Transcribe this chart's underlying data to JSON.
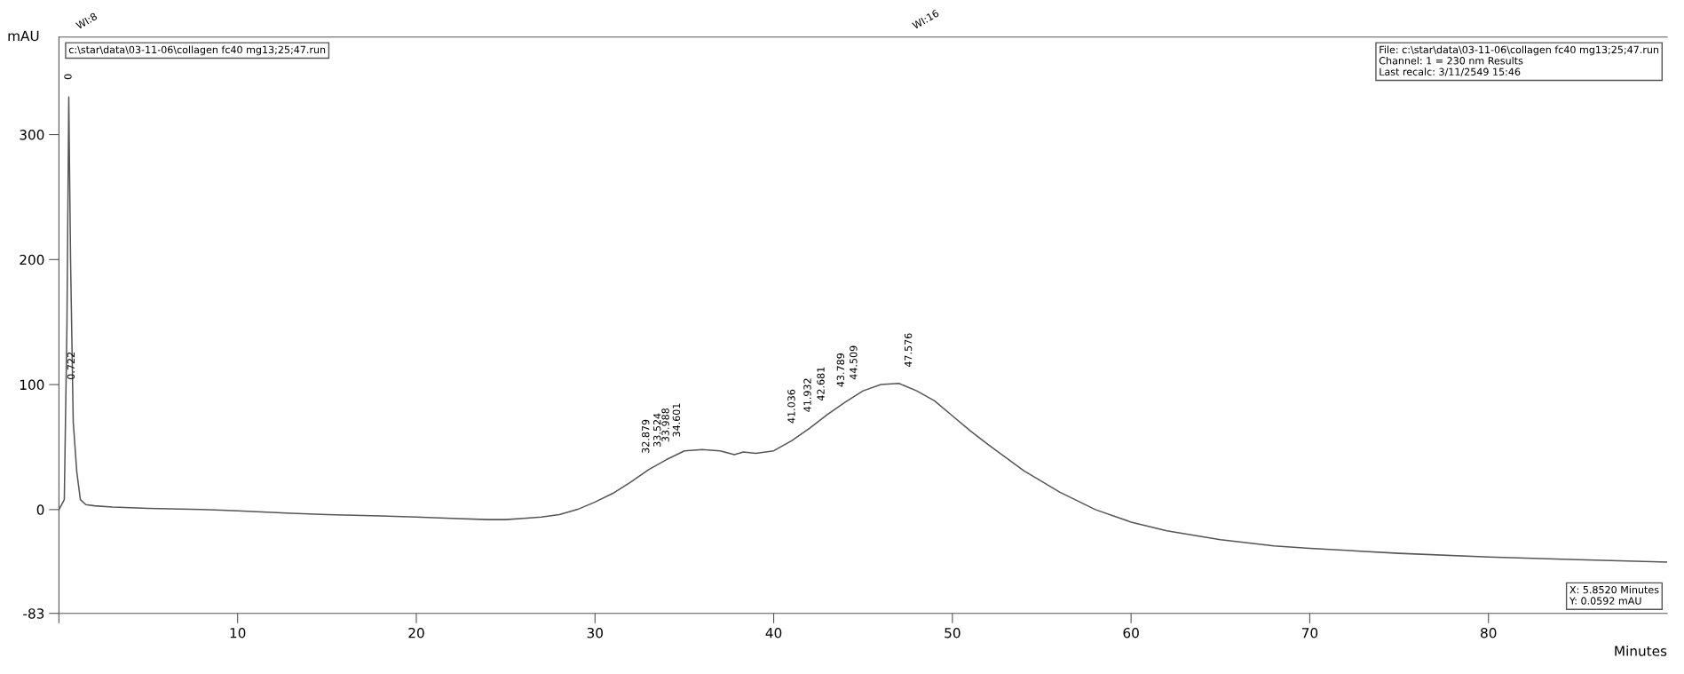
{
  "chart_data": {
    "type": "line",
    "xlabel": "Minutes",
    "ylabel": "mAU",
    "xlim": [
      0,
      90
    ],
    "xticks": [
      {
        "value": 0,
        "label": null
      },
      10,
      20,
      30,
      40,
      50,
      60,
      70,
      80
    ],
    "ylim": [
      -83,
      378
    ],
    "yticks": [
      -83,
      0,
      100,
      200,
      300
    ],
    "grid": false,
    "marker": "none",
    "line_style": "solid",
    "series": [
      {
        "color": "#555555",
        "x": [
          0,
          0.3,
          0.45,
          0.55,
          0.65,
          0.8,
          1.0,
          1.2,
          1.5,
          2,
          3,
          5,
          8,
          10,
          13,
          15,
          18,
          20,
          22,
          24,
          25,
          26,
          27,
          28,
          29,
          30,
          31,
          32,
          33,
          34,
          35,
          36,
          37,
          37.8,
          38.3,
          39,
          40,
          41,
          42,
          43,
          44,
          45,
          46,
          47,
          48,
          49,
          50,
          51,
          52,
          54,
          56,
          58,
          60,
          62,
          65,
          68,
          70,
          75,
          80,
          85,
          90
        ],
        "values": [
          0,
          8,
          150,
          330,
          200,
          70,
          30,
          8,
          4,
          3,
          2,
          1,
          0,
          -1,
          -3,
          -4,
          -5,
          -6,
          -7,
          -8,
          -8,
          -7,
          -6,
          -4,
          0,
          6,
          13,
          22,
          32,
          40,
          47,
          48,
          47,
          44,
          46,
          45,
          47,
          55,
          65,
          76,
          86,
          95,
          100,
          101,
          95,
          87,
          75,
          63,
          52,
          31,
          14,
          0,
          -10,
          -17,
          -24,
          -29,
          -31,
          -35,
          -38,
          -40,
          -42
        ]
      }
    ],
    "annotations": [
      "WI:8",
      "WI:16",
      {
        "text": "0",
        "x": 0.55,
        "y": 330
      },
      {
        "text": "0.722",
        "x": 0.72,
        "y": 90
      },
      {
        "text": "32.879",
        "x": 32.879,
        "y": 31
      },
      {
        "text": "33.524",
        "x": 33.524,
        "y": 36
      },
      {
        "text": "33.988",
        "x": 33.988,
        "y": 40
      },
      {
        "text": "34.601",
        "x": 34.601,
        "y": 44
      },
      {
        "text": "41.036",
        "x": 41.036,
        "y": 55
      },
      {
        "text": "41.932",
        "x": 41.932,
        "y": 64
      },
      {
        "text": "42.681",
        "x": 42.681,
        "y": 73
      },
      {
        "text": "43.789",
        "x": 43.789,
        "y": 84
      },
      {
        "text": "44.509",
        "x": 44.509,
        "y": 90
      },
      {
        "text": "47.576",
        "x": 47.576,
        "y": 100
      },
      "c:\\star\\data\\03-11-06\\collagen fc40 mg13;25;47.run",
      "File: c:\\star\\data\\03-11-06\\collagen fc40 mg13;25;47.run\nChannel: 1 = 230 nm Results\nLast recalc: 3/11/2549 15:46",
      "X: 5.8520 Minutes\nY: 0.0592 mAU"
    ]
  }
}
